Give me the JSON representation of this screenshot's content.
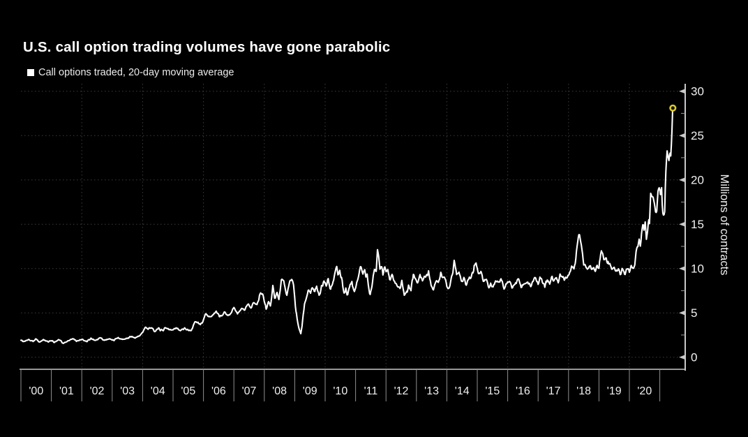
{
  "header": {
    "title": "U.S. call option trading volumes have gone parabolic",
    "legend_label": "Call options traded, 20-day moving average"
  },
  "colors": {
    "background": "#000000",
    "line": "#ffffff",
    "grid": "#3d3d3d",
    "axis": "#c9c9c9",
    "tick_label": "#f0f0f0",
    "x_separator": "#909090",
    "marker": "#d9c930"
  },
  "chart_data": {
    "type": "line",
    "title": "U.S. call option trading volumes have gone parabolic",
    "ylabel": "Millions of contracts",
    "unit": "millions of contracts",
    "grid_style": "dotted",
    "legend_position": "top-left",
    "ylim": [
      0,
      30
    ],
    "y_ticks": [
      0,
      5,
      10,
      15,
      20,
      25,
      30
    ],
    "y_minor_tick_step": 2.5,
    "x_domain": [
      2000,
      2021.83
    ],
    "x_tick_labels": [
      "'00",
      "'01",
      "'02",
      "'03",
      "'04",
      "'05",
      "'06",
      "'07",
      "'08",
      "'09",
      "'10",
      "'11",
      "'12",
      "'13",
      "'14",
      "'15",
      "'16",
      "'17",
      "'18",
      "'19",
      "'20"
    ],
    "x_gridline_years": [
      2002,
      2004,
      2006,
      2008,
      2010,
      2012,
      2014,
      2016,
      2018,
      2020
    ],
    "last_point": {
      "year": 2021.43,
      "value": 28.1
    },
    "noise": {
      "seed": 7,
      "step": 0.02,
      "amplitude_base": 0.06,
      "amplitude_per_unit": 0.04,
      "amplitude_max": 0.5,
      "taper_start": 2021.15,
      "taper_end": 2021.35
    },
    "series": [
      {
        "name": "Call options traded, 20-day moving average",
        "color": "#ffffff",
        "anchors": [
          [
            2000.0,
            1.9
          ],
          [
            2000.12,
            1.75
          ],
          [
            2000.25,
            2.0
          ],
          [
            2000.4,
            1.8
          ],
          [
            2000.5,
            2.05
          ],
          [
            2000.62,
            1.7
          ],
          [
            2000.75,
            1.95
          ],
          [
            2000.9,
            1.75
          ],
          [
            2001.0,
            1.9
          ],
          [
            2001.1,
            1.65
          ],
          [
            2001.25,
            1.95
          ],
          [
            2001.4,
            1.6
          ],
          [
            2001.55,
            1.85
          ],
          [
            2001.7,
            2.1
          ],
          [
            2001.85,
            1.8
          ],
          [
            2002.0,
            2.05
          ],
          [
            2002.15,
            1.75
          ],
          [
            2002.3,
            2.1
          ],
          [
            2002.45,
            1.85
          ],
          [
            2002.6,
            2.2
          ],
          [
            2002.75,
            1.9
          ],
          [
            2002.9,
            2.1
          ],
          [
            2003.05,
            1.9
          ],
          [
            2003.2,
            2.2
          ],
          [
            2003.35,
            2.0
          ],
          [
            2003.5,
            2.15
          ],
          [
            2003.62,
            2.35
          ],
          [
            2003.75,
            2.15
          ],
          [
            2003.9,
            2.45
          ],
          [
            2004.0,
            2.8
          ],
          [
            2004.08,
            3.4
          ],
          [
            2004.18,
            3.2
          ],
          [
            2004.28,
            3.45
          ],
          [
            2004.4,
            2.9
          ],
          [
            2004.52,
            3.2
          ],
          [
            2004.65,
            3.0
          ],
          [
            2004.78,
            3.3
          ],
          [
            2004.9,
            3.05
          ],
          [
            2004.97,
            3.15
          ],
          [
            2005.1,
            3.3
          ],
          [
            2005.22,
            3.0
          ],
          [
            2005.35,
            3.25
          ],
          [
            2005.5,
            3.05
          ],
          [
            2005.6,
            3.0
          ],
          [
            2005.73,
            4.1
          ],
          [
            2005.85,
            3.7
          ],
          [
            2005.95,
            3.9
          ],
          [
            2006.08,
            4.9
          ],
          [
            2006.2,
            4.5
          ],
          [
            2006.32,
            4.8
          ],
          [
            2006.42,
            5.25
          ],
          [
            2006.55,
            4.6
          ],
          [
            2006.68,
            5.1
          ],
          [
            2006.8,
            4.7
          ],
          [
            2006.9,
            4.9
          ],
          [
            2007.0,
            5.6
          ],
          [
            2007.12,
            4.9
          ],
          [
            2007.26,
            5.6
          ],
          [
            2007.35,
            5.3
          ],
          [
            2007.45,
            6.0
          ],
          [
            2007.55,
            5.6
          ],
          [
            2007.65,
            6.2
          ],
          [
            2007.75,
            5.8
          ],
          [
            2007.85,
            6.9
          ],
          [
            2007.93,
            7.1
          ],
          [
            2008.0,
            6.3
          ],
          [
            2008.06,
            5.4
          ],
          [
            2008.13,
            6.2
          ],
          [
            2008.2,
            5.8
          ],
          [
            2008.28,
            8.1
          ],
          [
            2008.34,
            6.7
          ],
          [
            2008.42,
            7.3
          ],
          [
            2008.48,
            6.5
          ],
          [
            2008.56,
            8.6
          ],
          [
            2008.64,
            8.7
          ],
          [
            2008.73,
            6.9
          ],
          [
            2008.83,
            8.6
          ],
          [
            2008.95,
            8.7
          ],
          [
            2009.02,
            5.8
          ],
          [
            2009.08,
            4.4
          ],
          [
            2009.14,
            3.3
          ],
          [
            2009.2,
            2.65
          ],
          [
            2009.26,
            4.2
          ],
          [
            2009.32,
            6.0
          ],
          [
            2009.38,
            6.6
          ],
          [
            2009.45,
            7.7
          ],
          [
            2009.52,
            7.2
          ],
          [
            2009.58,
            8.0
          ],
          [
            2009.65,
            7.3
          ],
          [
            2009.72,
            7.9
          ],
          [
            2009.8,
            6.9
          ],
          [
            2009.88,
            8.0
          ],
          [
            2009.95,
            8.5
          ],
          [
            2010.03,
            8.2
          ],
          [
            2010.1,
            8.7
          ],
          [
            2010.17,
            7.5
          ],
          [
            2010.25,
            8.5
          ],
          [
            2010.32,
            9.5
          ],
          [
            2010.37,
            10.3
          ],
          [
            2010.42,
            9.3
          ],
          [
            2010.48,
            9.7
          ],
          [
            2010.55,
            8.9
          ],
          [
            2010.62,
            7.2
          ],
          [
            2010.68,
            7.7
          ],
          [
            2010.73,
            6.9
          ],
          [
            2010.82,
            8.3
          ],
          [
            2010.88,
            8.6
          ],
          [
            2010.95,
            7.4
          ],
          [
            2011.05,
            8.4
          ],
          [
            2011.12,
            9.6
          ],
          [
            2011.18,
            10.2
          ],
          [
            2011.23,
            9.4
          ],
          [
            2011.3,
            9.9
          ],
          [
            2011.34,
            9.2
          ],
          [
            2011.38,
            9.5
          ],
          [
            2011.42,
            8.4
          ],
          [
            2011.47,
            6.9
          ],
          [
            2011.52,
            7.7
          ],
          [
            2011.58,
            9.0
          ],
          [
            2011.63,
            10.1
          ],
          [
            2011.68,
            9.5
          ],
          [
            2011.72,
            12.1
          ],
          [
            2011.76,
            11.3
          ],
          [
            2011.8,
            9.8
          ],
          [
            2011.85,
            10.3
          ],
          [
            2011.9,
            9.3
          ],
          [
            2011.95,
            10.1
          ],
          [
            2012.0,
            9.6
          ],
          [
            2012.06,
            9.8
          ],
          [
            2012.12,
            8.7
          ],
          [
            2012.2,
            9.3
          ],
          [
            2012.3,
            8.4
          ],
          [
            2012.45,
            7.8
          ],
          [
            2012.52,
            8.6
          ],
          [
            2012.6,
            7.0
          ],
          [
            2012.67,
            7.3
          ],
          [
            2012.75,
            8.0
          ],
          [
            2012.82,
            7.7
          ],
          [
            2012.9,
            9.3
          ],
          [
            2012.97,
            8.9
          ],
          [
            2013.05,
            8.2
          ],
          [
            2013.12,
            9.5
          ],
          [
            2013.2,
            8.6
          ],
          [
            2013.3,
            8.9
          ],
          [
            2013.4,
            9.5
          ],
          [
            2013.5,
            8.1
          ],
          [
            2013.57,
            7.6
          ],
          [
            2013.65,
            8.7
          ],
          [
            2013.72,
            8.3
          ],
          [
            2013.8,
            9.5
          ],
          [
            2013.86,
            9.1
          ],
          [
            2013.92,
            9.2
          ],
          [
            2014.0,
            8.0
          ],
          [
            2014.07,
            7.6
          ],
          [
            2014.15,
            8.9
          ],
          [
            2014.25,
            10.9
          ],
          [
            2014.32,
            9.3
          ],
          [
            2014.4,
            9.7
          ],
          [
            2014.5,
            8.5
          ],
          [
            2014.57,
            8.9
          ],
          [
            2014.63,
            8.1
          ],
          [
            2014.7,
            8.8
          ],
          [
            2014.8,
            9.1
          ],
          [
            2014.88,
            9.7
          ],
          [
            2014.95,
            11.1
          ],
          [
            2015.0,
            10.0
          ],
          [
            2015.05,
            9.2
          ],
          [
            2015.12,
            9.7
          ],
          [
            2015.22,
            8.6
          ],
          [
            2015.3,
            8.9
          ],
          [
            2015.38,
            7.7
          ],
          [
            2015.45,
            8.3
          ],
          [
            2015.52,
            7.8
          ],
          [
            2015.62,
            8.8
          ],
          [
            2015.7,
            8.4
          ],
          [
            2015.78,
            8.8
          ],
          [
            2015.88,
            7.7
          ],
          [
            2015.95,
            8.3
          ],
          [
            2016.05,
            8.8
          ],
          [
            2016.15,
            7.8
          ],
          [
            2016.25,
            8.2
          ],
          [
            2016.35,
            8.9
          ],
          [
            2016.45,
            7.9
          ],
          [
            2016.55,
            8.3
          ],
          [
            2016.66,
            8.4
          ],
          [
            2016.78,
            8.0
          ],
          [
            2016.9,
            9.1
          ],
          [
            2017.0,
            8.3
          ],
          [
            2017.06,
            9.2
          ],
          [
            2017.15,
            8.5
          ],
          [
            2017.22,
            8.0
          ],
          [
            2017.3,
            8.8
          ],
          [
            2017.38,
            8.3
          ],
          [
            2017.45,
            9.1
          ],
          [
            2017.52,
            8.7
          ],
          [
            2017.6,
            9.1
          ],
          [
            2017.66,
            8.5
          ],
          [
            2017.72,
            9.3
          ],
          [
            2017.8,
            8.9
          ],
          [
            2017.87,
            8.7
          ],
          [
            2017.95,
            9.1
          ],
          [
            2018.02,
            9.6
          ],
          [
            2018.08,
            10.0
          ],
          [
            2018.14,
            10.4
          ],
          [
            2018.18,
            9.9
          ],
          [
            2018.22,
            10.5
          ],
          [
            2018.3,
            13.0
          ],
          [
            2018.35,
            14.0
          ],
          [
            2018.4,
            13.0
          ],
          [
            2018.44,
            11.9
          ],
          [
            2018.5,
            10.4
          ],
          [
            2018.56,
            10.2
          ],
          [
            2018.62,
            10.0
          ],
          [
            2018.68,
            10.4
          ],
          [
            2018.75,
            9.9
          ],
          [
            2018.82,
            10.1
          ],
          [
            2018.88,
            9.8
          ],
          [
            2018.95,
            10.3
          ],
          [
            2019.0,
            9.9
          ],
          [
            2019.07,
            12.1
          ],
          [
            2019.12,
            11.7
          ],
          [
            2019.17,
            11.0
          ],
          [
            2019.22,
            11.3
          ],
          [
            2019.28,
            10.6
          ],
          [
            2019.35,
            10.7
          ],
          [
            2019.42,
            10.0
          ],
          [
            2019.5,
            10.2
          ],
          [
            2019.57,
            9.6
          ],
          [
            2019.63,
            10.0
          ],
          [
            2019.7,
            9.4
          ],
          [
            2019.78,
            9.8
          ],
          [
            2019.85,
            9.3
          ],
          [
            2019.93,
            10.1
          ],
          [
            2020.0,
            9.6
          ],
          [
            2020.07,
            10.4
          ],
          [
            2020.12,
            10.0
          ],
          [
            2020.18,
            10.5
          ],
          [
            2020.23,
            12.1
          ],
          [
            2020.28,
            12.4
          ],
          [
            2020.32,
            13.3
          ],
          [
            2020.36,
            12.6
          ],
          [
            2020.4,
            13.7
          ],
          [
            2020.45,
            15.0
          ],
          [
            2020.48,
            14.5
          ],
          [
            2020.52,
            15.1
          ],
          [
            2020.56,
            13.7
          ],
          [
            2020.6,
            14.5
          ],
          [
            2020.63,
            15.6
          ],
          [
            2020.66,
            15.1
          ],
          [
            2020.7,
            18.4
          ],
          [
            2020.74,
            18.0
          ],
          [
            2020.78,
            18.3
          ],
          [
            2020.82,
            17.5
          ],
          [
            2020.86,
            16.3
          ],
          [
            2020.9,
            16.5
          ],
          [
            2020.94,
            18.6
          ],
          [
            2020.97,
            19.2
          ],
          [
            2021.0,
            18.9
          ],
          [
            2021.03,
            18.4
          ],
          [
            2021.06,
            19.1
          ],
          [
            2021.09,
            16.1
          ],
          [
            2021.13,
            16.0
          ],
          [
            2021.16,
            16.4
          ],
          [
            2021.19,
            19.8
          ],
          [
            2021.21,
            21.7
          ],
          [
            2021.24,
            23.2
          ],
          [
            2021.27,
            22.7
          ],
          [
            2021.3,
            22.2
          ],
          [
            2021.33,
            23.2
          ],
          [
            2021.36,
            22.7
          ],
          [
            2021.38,
            24.0
          ],
          [
            2021.4,
            25.5
          ],
          [
            2021.42,
            27.7
          ],
          [
            2021.43,
            28.1
          ]
        ]
      }
    ]
  }
}
